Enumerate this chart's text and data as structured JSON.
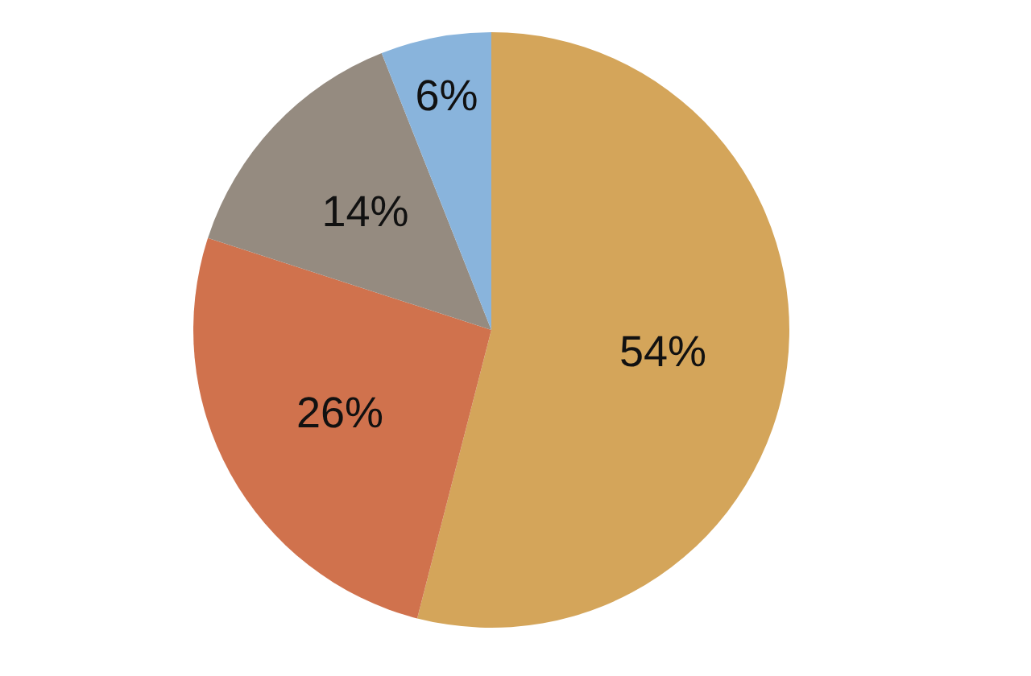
{
  "chart_data": {
    "type": "pie",
    "categories": [
      null,
      null,
      null,
      null
    ],
    "values": [
      54,
      26,
      14,
      6
    ],
    "colors": [
      "#d4a55a",
      "#d0724d",
      "#958b80",
      "#89b4dc"
    ],
    "value_labels": [
      "54%",
      "26%",
      "14%",
      "6%"
    ]
  }
}
